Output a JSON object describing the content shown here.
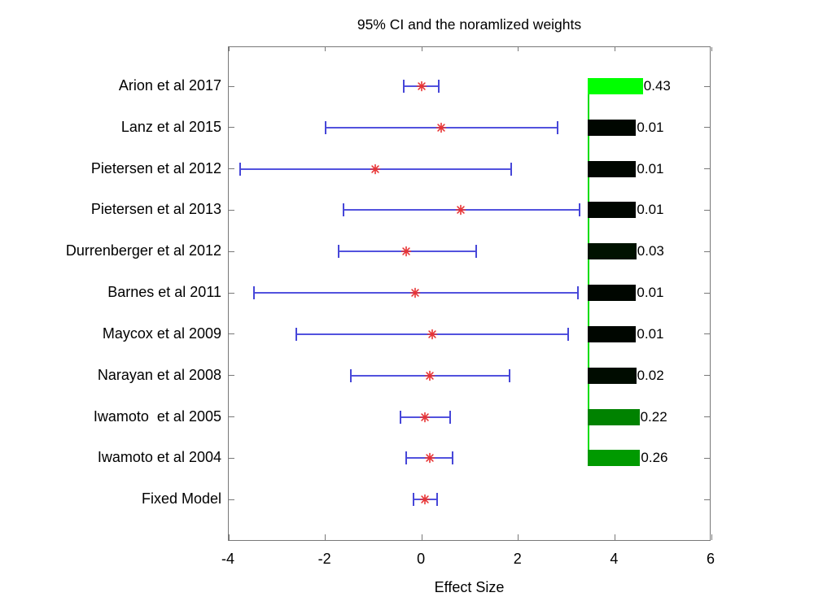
{
  "title": "95% CI and the noramlized weights",
  "xlabel": "Effect Size",
  "chart_data": {
    "type": "forest",
    "title": "95% CI and the noramlized weights",
    "xlabel": "Effect Size",
    "xlim": [
      -4,
      6
    ],
    "x_ticks": [
      -4,
      -2,
      0,
      2,
      4,
      6
    ],
    "grid": false,
    "marker": "red-asterisk",
    "ci_color": "#5252de",
    "marker_color": "#e83434",
    "bar_baseline_x": 3.44,
    "bar_baseline_color": "#00dd00",
    "studies": [
      {
        "label": "Arion et al 2017",
        "center": 0.0,
        "ci_low": -0.38,
        "ci_high": 0.35,
        "weight": 0.43,
        "weight_label": "0.43",
        "bar_color": "#00ff00"
      },
      {
        "label": "Lanz et al 2015",
        "center": 0.4,
        "ci_low": -2.0,
        "ci_high": 2.82,
        "weight": 0.01,
        "weight_label": "0.01",
        "bar_color": "#000600"
      },
      {
        "label": "Pietersen et al 2012",
        "center": -0.96,
        "ci_low": -3.76,
        "ci_high": 1.85,
        "weight": 0.01,
        "weight_label": "0.01",
        "bar_color": "#000600"
      },
      {
        "label": "Pietersen et al 2013",
        "center": 0.8,
        "ci_low": -1.63,
        "ci_high": 3.27,
        "weight": 0.01,
        "weight_label": "0.01",
        "bar_color": "#000600"
      },
      {
        "label": "Durrenberger et al 2012",
        "center": -0.32,
        "ci_low": -1.72,
        "ci_high": 1.13,
        "weight": 0.03,
        "weight_label": "0.03",
        "bar_color": "#001200"
      },
      {
        "label": "Barnes et al 2011",
        "center": -0.13,
        "ci_low": -3.47,
        "ci_high": 3.23,
        "weight": 0.01,
        "weight_label": "0.01",
        "bar_color": "#000600"
      },
      {
        "label": "Maycox et al 2009",
        "center": 0.21,
        "ci_low": -2.6,
        "ci_high": 3.04,
        "weight": 0.01,
        "weight_label": "0.01",
        "bar_color": "#000600"
      },
      {
        "label": "Narayan et al 2008",
        "center": 0.16,
        "ci_low": -1.47,
        "ci_high": 1.81,
        "weight": 0.02,
        "weight_label": "0.02",
        "bar_color": "#000c00"
      },
      {
        "label": "Iwamoto  et al 2005",
        "center": 0.07,
        "ci_low": -0.44,
        "ci_high": 0.59,
        "weight": 0.22,
        "weight_label": "0.22",
        "bar_color": "#008200"
      },
      {
        "label": "Iwamoto et al 2004",
        "center": 0.16,
        "ci_low": -0.32,
        "ci_high": 0.64,
        "weight": 0.26,
        "weight_label": "0.26",
        "bar_color": "#009a00"
      },
      {
        "label": "Fixed Model",
        "center": 0.06,
        "ci_low": -0.17,
        "ci_high": 0.31,
        "weight": null,
        "weight_label": "",
        "bar_color": null
      }
    ]
  }
}
